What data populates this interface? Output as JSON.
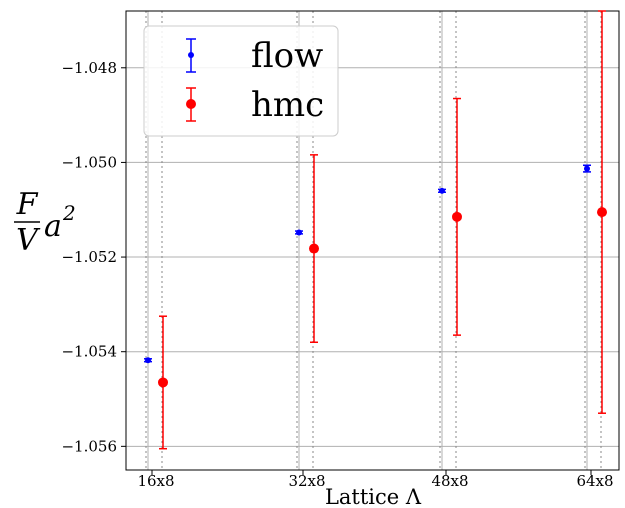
{
  "chart_data": {
    "type": "scatter",
    "title": "",
    "xlabel": "Lattice Λ",
    "ylabel": {
      "numerator": "F",
      "denominator": "V",
      "factor": "a",
      "exponent": "2"
    },
    "categories": [
      "16x8",
      "32x8",
      "48x8",
      "64x8"
    ],
    "ylim": [
      -1.0565,
      -1.0468
    ],
    "yticks": [
      -1.048,
      -1.05,
      -1.052,
      -1.054,
      -1.056
    ],
    "ytick_labels": [
      "−1.048",
      "−1.050",
      "−1.052",
      "−1.054",
      "−1.056"
    ],
    "grid": true,
    "legend_position": "top-left",
    "series": [
      {
        "name": "flow",
        "color": "#0000ff",
        "values": [
          -1.05418,
          -1.05148,
          -1.0506,
          -1.05013
        ],
        "errors": [
          3e-05,
          3e-05,
          3e-05,
          7e-05
        ]
      },
      {
        "name": "hmc",
        "color": "#ff0000",
        "values": [
          -1.05465,
          -1.05182,
          -1.05115,
          -1.05105
        ],
        "errors": [
          0.0014,
          0.00198,
          0.0025,
          0.00425
        ]
      }
    ]
  }
}
